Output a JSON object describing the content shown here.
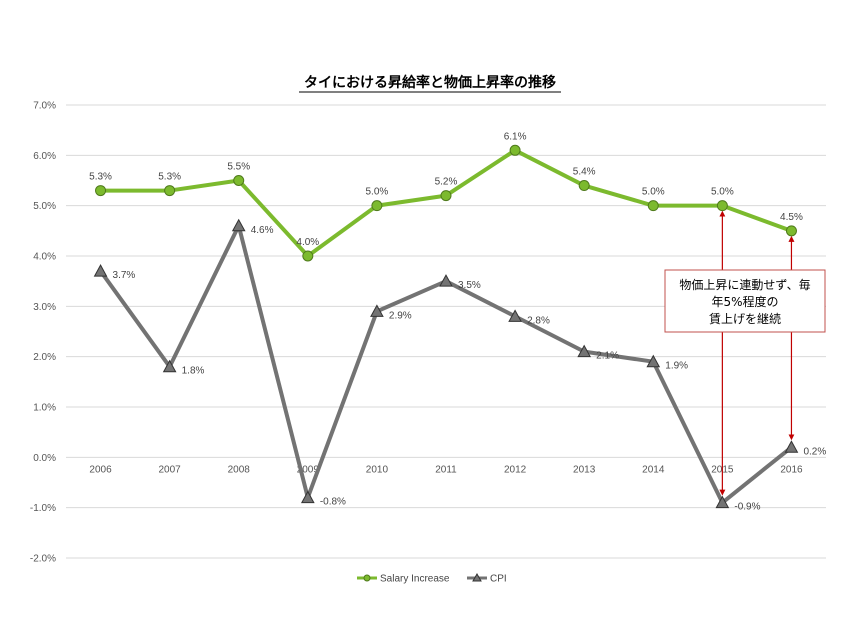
{
  "chart_data": {
    "type": "line",
    "title": "タイにおける昇給率と物価上昇率の推移",
    "categories": [
      "2006",
      "2007",
      "2008",
      "2009",
      "2010",
      "2011",
      "2012",
      "2013",
      "2014",
      "2015",
      "2016"
    ],
    "y_ticks": [
      "7.0%",
      "6.0%",
      "5.0%",
      "4.0%",
      "3.0%",
      "2.0%",
      "1.0%",
      "0.0%",
      "-1.0%",
      "-2.0%"
    ],
    "ylim": [
      -2.0,
      7.0
    ],
    "grid": true,
    "legend_position": "bottom",
    "series": [
      {
        "name": "Salary Increase",
        "marker": "circle",
        "color": "#7cba2e",
        "values": [
          5.3,
          5.3,
          5.5,
          4.0,
          5.0,
          5.2,
          6.1,
          5.4,
          5.0,
          5.0,
          4.5
        ],
        "labels": [
          "5.3%",
          "5.3%",
          "5.5%",
          "4.0%",
          "5.0%",
          "5.2%",
          "6.1%",
          "5.4%",
          "5.0%",
          "5.0%",
          "4.5%"
        ]
      },
      {
        "name": "CPI",
        "marker": "triangle",
        "color": "#737373",
        "values": [
          3.7,
          1.8,
          4.6,
          -0.8,
          2.9,
          3.5,
          2.8,
          2.1,
          1.9,
          -0.9,
          0.2
        ],
        "labels": [
          "3.7%",
          "1.8%",
          "4.6%",
          "-0.8%",
          "2.9%",
          "3.5%",
          "2.8%",
          "2.1%",
          "1.9%",
          "-0.9%",
          "0.2%"
        ]
      }
    ],
    "annotation": {
      "lines": [
        "物価上昇に連動せず、毎",
        "年5%程度の",
        "賃上げを継続"
      ],
      "border_color": "#c0504d",
      "arrow_color": "#c00000"
    }
  }
}
